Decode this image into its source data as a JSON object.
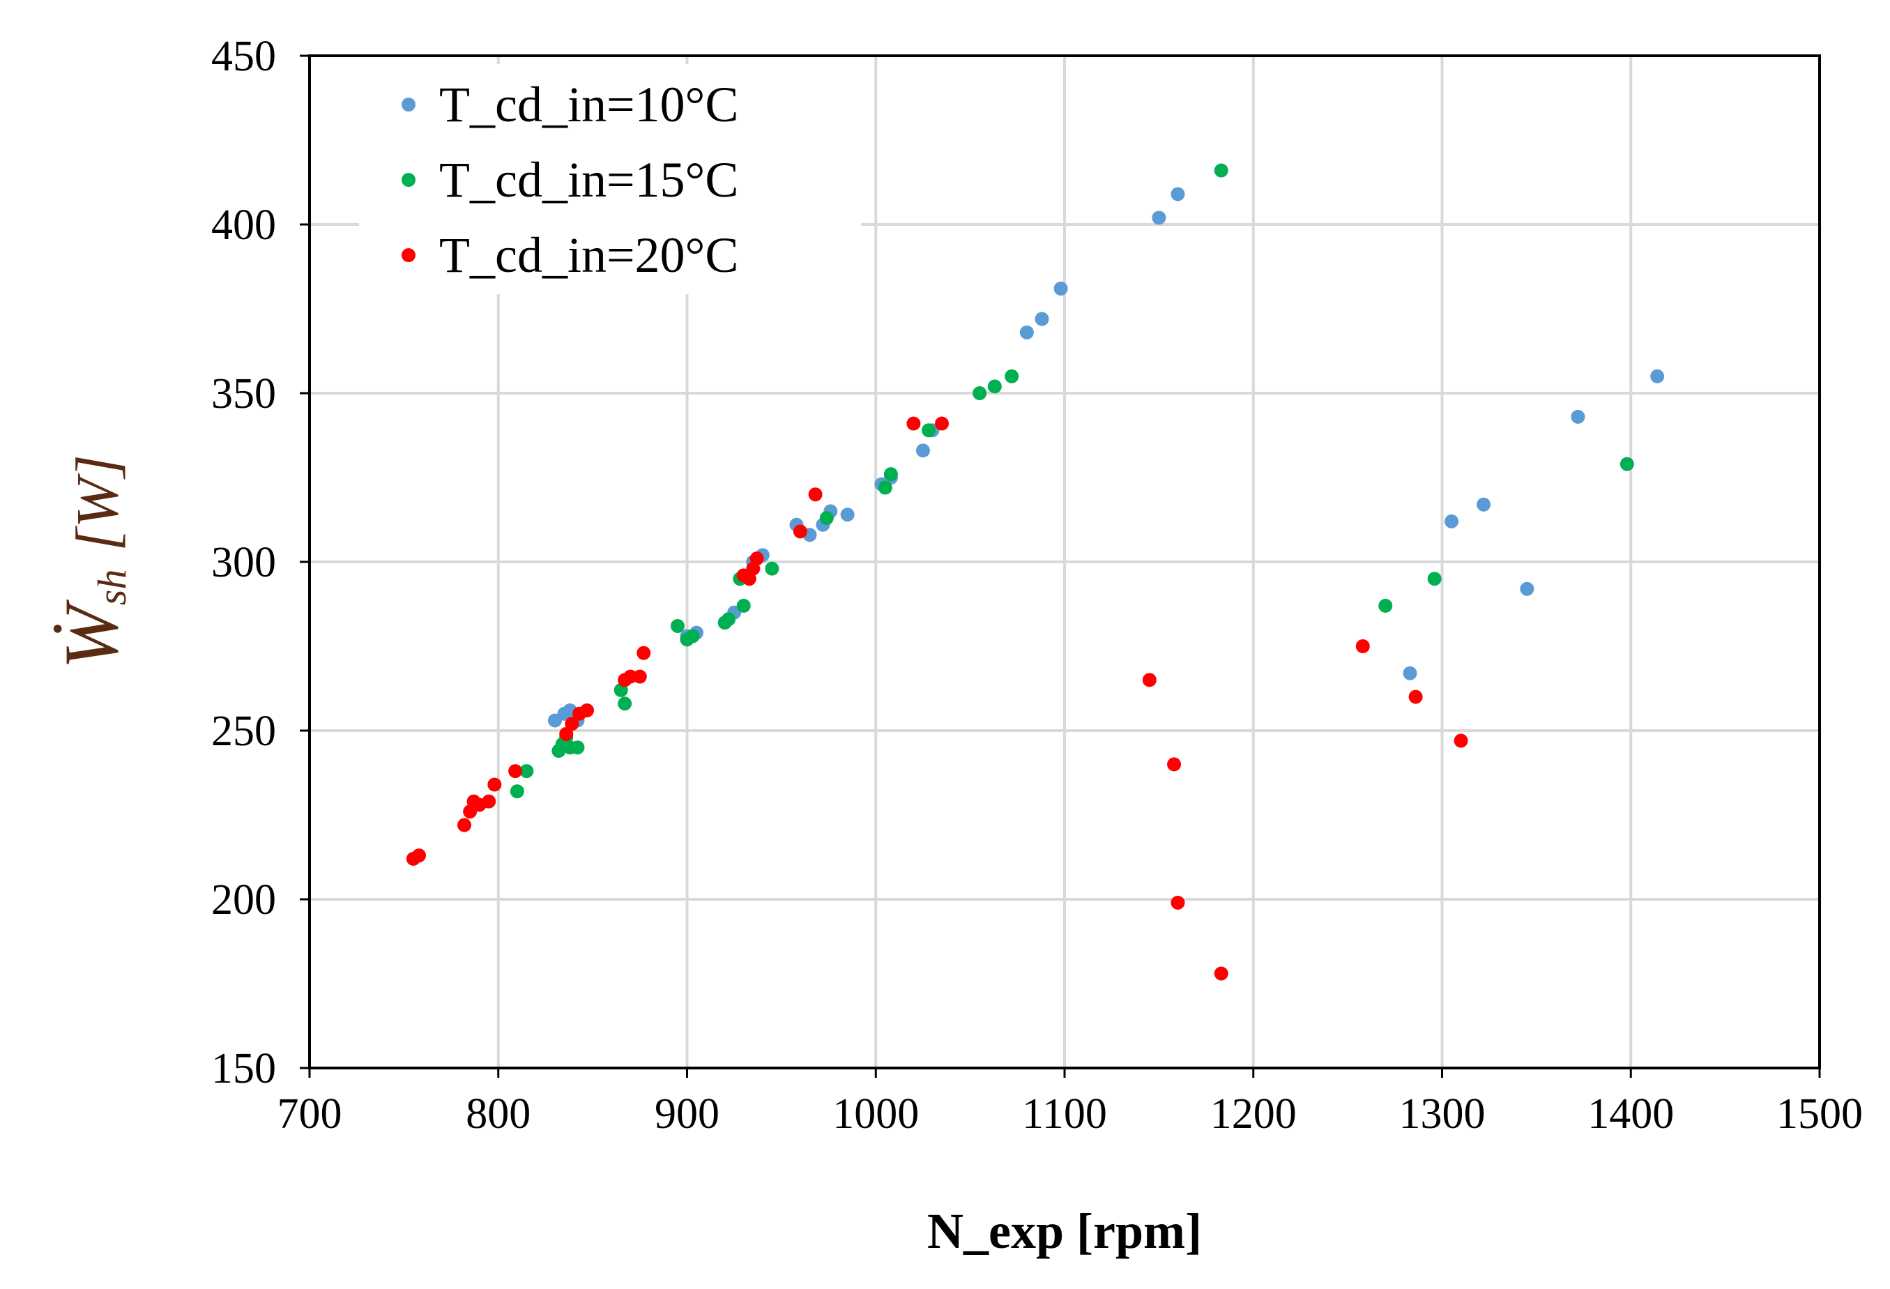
{
  "chart_data": {
    "type": "scatter",
    "title": "",
    "xlabel": "N_exp [rpm]",
    "ylabel": {
      "symbol": "Ẇ",
      "subscript": "sh",
      "unit": "[W]"
    },
    "xlim": [
      700,
      1500
    ],
    "ylim": [
      150,
      450
    ],
    "xticks": [
      700,
      800,
      900,
      1000,
      1100,
      1200,
      1300,
      1400,
      1500
    ],
    "yticks": [
      150,
      200,
      250,
      300,
      350,
      400,
      450
    ],
    "grid": true,
    "legend": "top-left",
    "series": [
      {
        "name": "T_cd_in=10°C",
        "color": "#5b9bd5",
        "points": [
          [
            830,
            253
          ],
          [
            835,
            255
          ],
          [
            838,
            256
          ],
          [
            842,
            253
          ],
          [
            900,
            278
          ],
          [
            905,
            279
          ],
          [
            925,
            285
          ],
          [
            935,
            300
          ],
          [
            940,
            302
          ],
          [
            958,
            311
          ],
          [
            965,
            308
          ],
          [
            972,
            311
          ],
          [
            976,
            315
          ],
          [
            985,
            314
          ],
          [
            1003,
            323
          ],
          [
            1008,
            325
          ],
          [
            1025,
            333
          ],
          [
            1030,
            339
          ],
          [
            1080,
            368
          ],
          [
            1088,
            372
          ],
          [
            1098,
            381
          ],
          [
            1150,
            402
          ],
          [
            1160,
            409
          ],
          [
            1283,
            267
          ],
          [
            1305,
            312
          ],
          [
            1322,
            317
          ],
          [
            1345,
            292
          ],
          [
            1372,
            343
          ],
          [
            1414,
            355
          ]
        ]
      },
      {
        "name": "T_cd_in=15°C",
        "color": "#00b050",
        "points": [
          [
            810,
            232
          ],
          [
            815,
            238
          ],
          [
            832,
            244
          ],
          [
            834,
            246
          ],
          [
            836,
            248
          ],
          [
            838,
            245
          ],
          [
            842,
            245
          ],
          [
            865,
            262
          ],
          [
            867,
            258
          ],
          [
            895,
            281
          ],
          [
            900,
            277
          ],
          [
            903,
            278
          ],
          [
            920,
            282
          ],
          [
            922,
            283
          ],
          [
            928,
            295
          ],
          [
            930,
            287
          ],
          [
            945,
            298
          ],
          [
            974,
            313
          ],
          [
            1005,
            322
          ],
          [
            1008,
            326
          ],
          [
            1028,
            339
          ],
          [
            1055,
            350
          ],
          [
            1063,
            352
          ],
          [
            1072,
            355
          ],
          [
            1183,
            416
          ],
          [
            1270,
            287
          ],
          [
            1296,
            295
          ],
          [
            1398,
            329
          ]
        ]
      },
      {
        "name": "T_cd_in=20°C",
        "color": "#ff0000",
        "points": [
          [
            755,
            212
          ],
          [
            758,
            213
          ],
          [
            782,
            222
          ],
          [
            785,
            226
          ],
          [
            787,
            229
          ],
          [
            790,
            228
          ],
          [
            795,
            229
          ],
          [
            798,
            234
          ],
          [
            809,
            238
          ],
          [
            836,
            249
          ],
          [
            839,
            252
          ],
          [
            843,
            255
          ],
          [
            847,
            256
          ],
          [
            867,
            265
          ],
          [
            870,
            266
          ],
          [
            875,
            266
          ],
          [
            877,
            273
          ],
          [
            930,
            296
          ],
          [
            933,
            295
          ],
          [
            935,
            298
          ],
          [
            937,
            301
          ],
          [
            960,
            309
          ],
          [
            968,
            320
          ],
          [
            1020,
            341
          ],
          [
            1035,
            341
          ],
          [
            1145,
            265
          ],
          [
            1158,
            240
          ],
          [
            1160,
            199
          ],
          [
            1183,
            178
          ],
          [
            1258,
            275
          ],
          [
            1286,
            260
          ],
          [
            1310,
            247
          ]
        ]
      }
    ]
  }
}
